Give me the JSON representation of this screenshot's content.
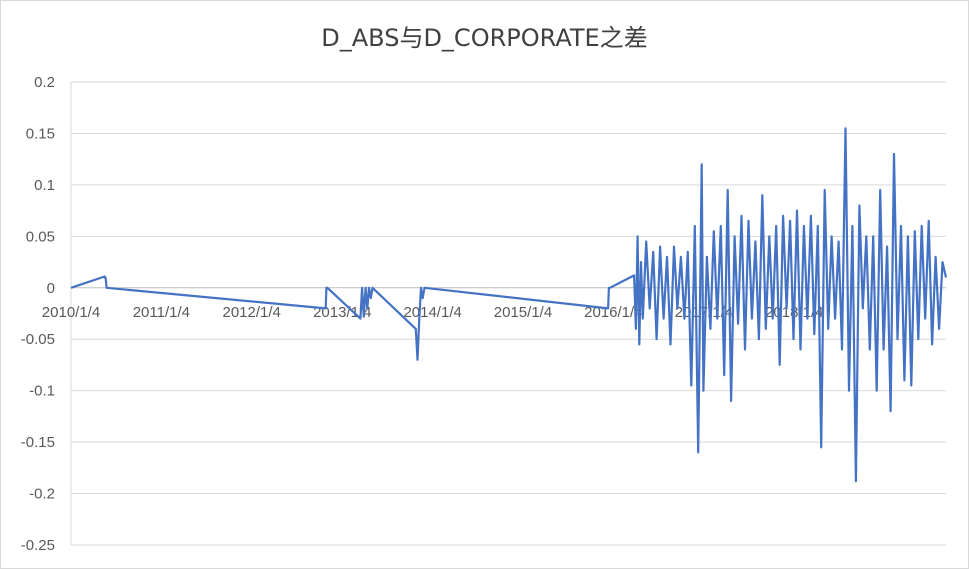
{
  "chart_data": {
    "type": "line",
    "title": "D_ABS与D_CORPORATE之差",
    "xlabel": "",
    "ylabel": "",
    "ylim": [
      -0.25,
      0.2
    ],
    "y_ticks": [
      "0.2",
      "0.15",
      "0.1",
      "0.05",
      "0",
      "-0.05",
      "-0.1",
      "-0.15",
      "-0.2",
      "-0.25"
    ],
    "x_ticks": [
      "2010/1/4",
      "2011/1/4",
      "2012/1/4",
      "2013/1/4",
      "2014/1/4",
      "2015/1/4",
      "2016/1/4",
      "2017/1/4",
      "2018/1/4"
    ],
    "grid": true,
    "legend": "none",
    "series_color": "#4472C4",
    "series": [
      {
        "x": [
          "2010/1/4",
          "2010/5/20",
          "2010/5/24",
          "2010/5/28",
          "2012/10/29",
          "2012/11/1",
          "2012/11/5",
          "2013/3/18",
          "2013/3/25",
          "2013/4/1",
          "2013/4/8",
          "2013/4/15",
          "2013/4/22",
          "2013/4/29",
          "2013/5/6",
          "2013/10/28",
          "2013/11/4",
          "2013/11/11",
          "2013/11/18",
          "2013/11/25",
          "2013/12/2",
          "2015/12/14",
          "2015/12/17",
          "2015/12/21",
          "2016/3/28",
          "2016/4/4",
          "2016/4/11",
          "2016/4/18",
          "2016/4/25",
          "2016/5/2",
          "2016/5/16",
          "2016/5/30",
          "2016/6/13",
          "2016/6/27",
          "2016/7/11",
          "2016/7/25",
          "2016/8/8",
          "2016/8/22",
          "2016/9/5",
          "2016/9/19",
          "2016/10/3",
          "2016/10/17",
          "2016/10/31",
          "2016/11/14",
          "2016/11/28",
          "2016/12/12",
          "2016/12/26",
          "2017/1/2",
          "2017/1/16",
          "2017/1/30",
          "2017/2/13",
          "2017/2/27",
          "2017/3/13",
          "2017/3/27",
          "2017/4/10",
          "2017/4/24",
          "2017/5/8",
          "2017/5/22",
          "2017/6/5",
          "2017/6/19",
          "2017/7/3",
          "2017/7/17",
          "2017/7/31",
          "2017/8/14",
          "2017/8/28",
          "2017/9/11",
          "2017/9/25",
          "2017/10/9",
          "2017/10/23",
          "2017/11/6",
          "2017/11/20",
          "2017/12/4",
          "2017/12/18",
          "2018/1/1",
          "2018/1/15",
          "2018/1/29",
          "2018/2/12",
          "2018/2/26",
          "2018/3/12",
          "2018/3/26",
          "2018/4/9",
          "2018/4/23",
          "2018/5/7",
          "2018/5/21",
          "2018/6/4",
          "2018/6/18",
          "2018/7/2",
          "2018/7/16",
          "2018/7/30",
          "2018/8/13",
          "2018/8/27",
          "2018/9/10",
          "2018/9/24",
          "2018/10/8",
          "2018/10/22",
          "2018/11/5",
          "2018/11/19",
          "2018/12/3",
          "2018/12/17",
          "2018/12/31",
          "2019/1/14",
          "2019/1/28",
          "2019/2/11",
          "2019/2/25",
          "2019/3/11",
          "2019/3/25",
          "2019/4/8",
          "2019/4/22",
          "2019/5/6",
          "2019/5/20",
          "2019/6/3",
          "2019/6/17",
          "2019/7/1",
          "2019/7/15",
          "2019/7/29",
          "2019/8/12",
          "2019/8/26",
          "2019/9/9"
        ],
        "values": [
          0,
          0.011,
          0.009,
          0,
          -0.02,
          0,
          0,
          -0.03,
          0.0,
          -0.028,
          0.0,
          -0.02,
          0.0,
          -0.01,
          0,
          -0.04,
          -0.07,
          -0.03,
          0.0,
          -0.01,
          0,
          -0.02,
          0,
          0,
          0.012,
          -0.04,
          0.05,
          -0.055,
          0.025,
          -0.03,
          0.045,
          -0.02,
          0.035,
          -0.05,
          0.04,
          -0.03,
          0.03,
          -0.055,
          0.04,
          -0.02,
          0.03,
          -0.03,
          0.035,
          -0.095,
          0.06,
          -0.16,
          0.12,
          -0.1,
          0.03,
          -0.04,
          0.055,
          -0.03,
          0.06,
          -0.085,
          0.095,
          -0.11,
          0.05,
          -0.035,
          0.07,
          -0.06,
          0.065,
          -0.03,
          0.045,
          -0.05,
          0.09,
          -0.04,
          0.05,
          -0.03,
          0.06,
          -0.075,
          0.07,
          -0.02,
          0.065,
          -0.05,
          0.075,
          -0.06,
          0.06,
          -0.03,
          0.07,
          -0.045,
          0.06,
          -0.155,
          0.095,
          -0.04,
          0.05,
          -0.03,
          0.045,
          -0.06,
          0.155,
          -0.1,
          0.06,
          -0.188,
          0.08,
          -0.02,
          0.05,
          -0.06,
          0.05,
          -0.1,
          0.095,
          -0.06,
          0.04,
          -0.12,
          0.13,
          -0.05,
          0.06,
          -0.09,
          0.05,
          -0.095,
          0.055,
          -0.05,
          0.06,
          -0.03,
          0.065,
          -0.055,
          0.03,
          -0.04,
          0.025,
          0.01
        ]
      }
    ]
  }
}
